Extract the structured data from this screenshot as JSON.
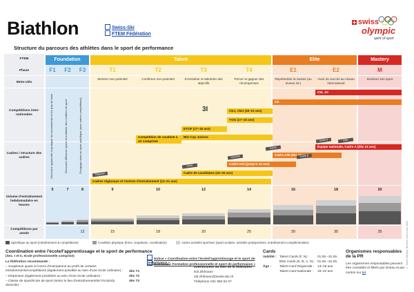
{
  "header": {
    "title": "Biathlon",
    "links": [
      {
        "label": "Swiss-Ski"
      },
      {
        "label": "FTEM Fédération"
      }
    ],
    "logo": {
      "word1": "swiss",
      "word2": "olympic",
      "tagline": "spirit of sport"
    }
  },
  "subtitle": "Structure du parcours des athlètes dans le sport de performance",
  "row_labels": {
    "ftem": "FTEM",
    "phase": "Phase",
    "moto": "Moto-clés",
    "competitions": "Compétitions inter-nationales",
    "cadres": "Cadres / structure des cadres",
    "volume": "Volume d'entraînement hebdomadaire en heures",
    "competitions_year": "Compétitions par année"
  },
  "sections": [
    {
      "label": "Foundation",
      "color": "#3e9ad6"
    },
    {
      "label": "Talent",
      "color": "#f6c519"
    },
    {
      "label": "Elite",
      "color": "#e97d23"
    },
    {
      "label": "Mastery",
      "color": "#d42a24"
    }
  ],
  "phases": [
    "F1",
    "F2",
    "F3",
    "T1",
    "T2",
    "T3",
    "T4",
    "E1",
    "E2",
    "M"
  ],
  "mottos": [
    "Montrer son potentiel",
    "Confirmer son potentiel",
    "S'entraîner et atteindre des objectifs",
    "Percer et gagner des récompenses",
    "Représenter la Suisse (au niveau int.)",
    "Avoir du succès au niveau international",
    "Dominer son sport"
  ],
  "foundation_notes": [
    "Découvrir, apprendre et pratiquer les mouvements et les jeux de base",
    "Découvrir différents sports et maîtriser des modèles de sport",
    "S'engager dans un sport spécifique (avec autres compétitions)"
  ],
  "competition_bars": [
    {
      "label": "CM, JO"
    },
    {
      "label": "CE"
    },
    {
      "label": "CEJ, CMJ (18–22 ans)"
    },
    {
      "label": "YOG (17–18 ans)"
    },
    {
      "label": "EYOF (17–18 ans)"
    },
    {
      "label": "IBU Cup Juniors"
    }
  ],
  "cadre_bars": [
    {
      "label": "Compétition de carabine à air comprimé"
    },
    {
      "label": "Équipe nationale, Cadre A (dès 23 ans)"
    },
    {
      "label": "Cadre A/B (dès 22 ans)"
    },
    {
      "label": "Cadre U23 (jusqu'à 24 ans)"
    },
    {
      "label": "Cadre de candidates (16–20 ans)"
    },
    {
      "label": "Cadres régionaux et Centres d'entraînement (13–21 ans)"
    }
  ],
  "cadre_small": [
    "Régional",
    "Junior",
    "Candidat",
    "Espoir",
    "Cadre B",
    "Cadre A",
    "Élite"
  ],
  "volume_hours": [
    "5",
    "7",
    "8",
    "9",
    "10",
    "12",
    "14",
    "16",
    "18",
    "20"
  ],
  "volume_bar_pct": [
    0.05,
    0.08,
    0.1,
    0.12,
    0.17,
    0.22,
    0.3,
    0.38,
    0.48,
    0.56
  ],
  "competitions_per_year": [
    "",
    "",
    "12",
    "15",
    "18",
    "20",
    "25",
    "30",
    "35",
    "35"
  ],
  "legend": [
    {
      "label": "Spécifique au sport (entraînement & compétitions)",
      "color": "#555555"
    },
    {
      "label": "Condition physique (force, souplesse, coordination)",
      "color": "#9a9a9a"
    },
    {
      "label": "Autres activités sportives (sport scolaire, activités polysportives, entraînement complémentaire)",
      "color": "#d0d0d0"
    }
  ],
  "footer": {
    "col1_title": "Coordination entre l'école/l'apprentissage et le sport de performance",
    "col1_sub": "(Sec. I et II, école professionnelle comprise)",
    "col1_recommended": "La fédération recommande :",
    "col1_items": [
      {
        "text": "– Souplesse quant à l'octroi d'exemptions au profit de certains entraînements/compétitions (également possible au sein d'une école ordinaire) :",
        "phase": "dès T1"
      },
      {
        "text": "– Dispenses (également possibles au sein d'une école ordinaire) :",
        "phase": "dès T2"
      },
      {
        "text": "– Classe de sport/école de sport (selon le lieu d'entraînement/de l'école/du domicile) :",
        "phase": "dès T2"
      }
    ],
    "col2_links": [
      "Notice « Coordination entre l'école/l'apprentissage et le sport de performance »",
      "Brochure « Formation professionnelle et sport de performance »"
    ],
    "col2_contact_title": "Interlocuteur au sein de la fédération :",
    "col2_contact": [
      "Edi Zihlmann",
      "edi.zihlmann@swiss-ski.ch",
      "Téléphone 031 950 62 07"
    ],
    "col3_title": "Cards",
    "col3_rows": [
      {
        "k": "Validité :",
        "v1": "Talent Cards (F, N) :",
        "v2": "01.06.–31.05."
      },
      {
        "k": "",
        "v1": "Elite Cards (E, B, A, O) :",
        "v2": "01.06.–31.05."
      },
      {
        "k": "Âge :",
        "v1": "Talent Card Régionale :",
        "v2": "13–18 ans"
      },
      {
        "k": "",
        "v1": "Talent Card Nationale :",
        "v2": "16–22 ans"
      }
    ],
    "col4_title": "Organismes responsables de la PR",
    "col4_text": "Les organismes responsables peuvent être consultés et filtrés par niveau et par canton sur",
    "col4_link": "ici"
  },
  "side_note": "© Swiss Olympic, dernière mise à jour 2022"
}
